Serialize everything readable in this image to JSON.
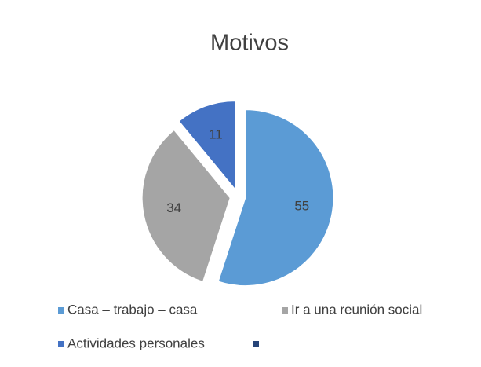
{
  "chart_data": {
    "type": "pie",
    "title": "Motivos",
    "categories": [
      "Casa – trabajo – casa",
      "Ir a una reunión social",
      "Actividades personales",
      null
    ],
    "values": [
      55,
      34,
      11,
      null
    ],
    "colors": [
      "#5b9bd5",
      "#a5a5a5",
      "#4472c4",
      "#264478"
    ],
    "legend": "bottom"
  }
}
